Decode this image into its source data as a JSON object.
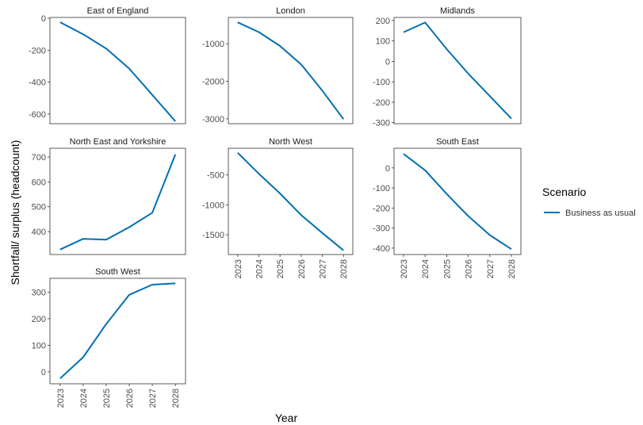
{
  "figure": {
    "xlabel": "Year",
    "ylabel": "Shortfall/ surplus (headcount)",
    "legend": {
      "title": "Scenario",
      "entries": [
        "Business as usual"
      ],
      "placement": "right"
    },
    "line_color": "#0070B0"
  },
  "chart_data": [
    {
      "type": "line",
      "title": "East of England",
      "x": [
        2023,
        2024,
        2025,
        2026,
        2027,
        2028
      ],
      "series": [
        {
          "name": "Business as usual",
          "values": [
            -25,
            -100,
            -190,
            -315,
            -480,
            -645
          ]
        }
      ],
      "yticks": [
        0,
        -200,
        -400,
        -600
      ],
      "ylim": [
        -660,
        5
      ]
    },
    {
      "type": "line",
      "title": "London",
      "x": [
        2023,
        2024,
        2025,
        2026,
        2027,
        2028
      ],
      "series": [
        {
          "name": "Business as usual",
          "values": [
            -430,
            -690,
            -1060,
            -1550,
            -2250,
            -3010
          ]
        }
      ],
      "yticks": [
        -1000,
        -2000,
        -3000
      ],
      "ylim": [
        -3130,
        -300
      ]
    },
    {
      "type": "line",
      "title": "Midlands",
      "x": [
        2023,
        2024,
        2025,
        2026,
        2027,
        2028
      ],
      "series": [
        {
          "name": "Business as usual",
          "values": [
            143,
            190,
            60,
            -60,
            -170,
            -280
          ]
        }
      ],
      "yticks": [
        200,
        100,
        0,
        -100,
        -200,
        -300
      ],
      "ylim": [
        -305,
        215
      ]
    },
    {
      "type": "line",
      "title": "North East and Yorkshire",
      "x": [
        2023,
        2024,
        2025,
        2026,
        2027,
        2028
      ],
      "series": [
        {
          "name": "Business as usual",
          "values": [
            328,
            371,
            368,
            418,
            476,
            710
          ]
        }
      ],
      "yticks": [
        400,
        500,
        600,
        700
      ],
      "ylim": [
        308,
        735
      ]
    },
    {
      "type": "line",
      "title": "North West",
      "x": [
        2023,
        2024,
        2025,
        2026,
        2027,
        2028
      ],
      "series": [
        {
          "name": "Business as usual",
          "values": [
            -130,
            -480,
            -810,
            -1170,
            -1470,
            -1760
          ]
        }
      ],
      "yticks": [
        -500,
        -1000,
        -1500
      ],
      "ylim": [
        -1830,
        -55
      ]
    },
    {
      "type": "line",
      "title": "South East",
      "x": [
        2023,
        2024,
        2025,
        2026,
        2027,
        2028
      ],
      "series": [
        {
          "name": "Business as usual",
          "values": [
            70,
            -12,
            -130,
            -240,
            -335,
            -405
          ]
        }
      ],
      "yticks": [
        0,
        -100,
        -200,
        -300,
        -400
      ],
      "ylim": [
        -432,
        98
      ]
    },
    {
      "type": "line",
      "title": "South West",
      "x": [
        2023,
        2024,
        2025,
        2026,
        2027,
        2028
      ],
      "series": [
        {
          "name": "Business as usual",
          "values": [
            -25,
            55,
            180,
            290,
            328,
            333
          ]
        }
      ],
      "yticks": [
        0,
        100,
        200,
        300
      ],
      "ylim": [
        -45,
        352
      ]
    }
  ]
}
